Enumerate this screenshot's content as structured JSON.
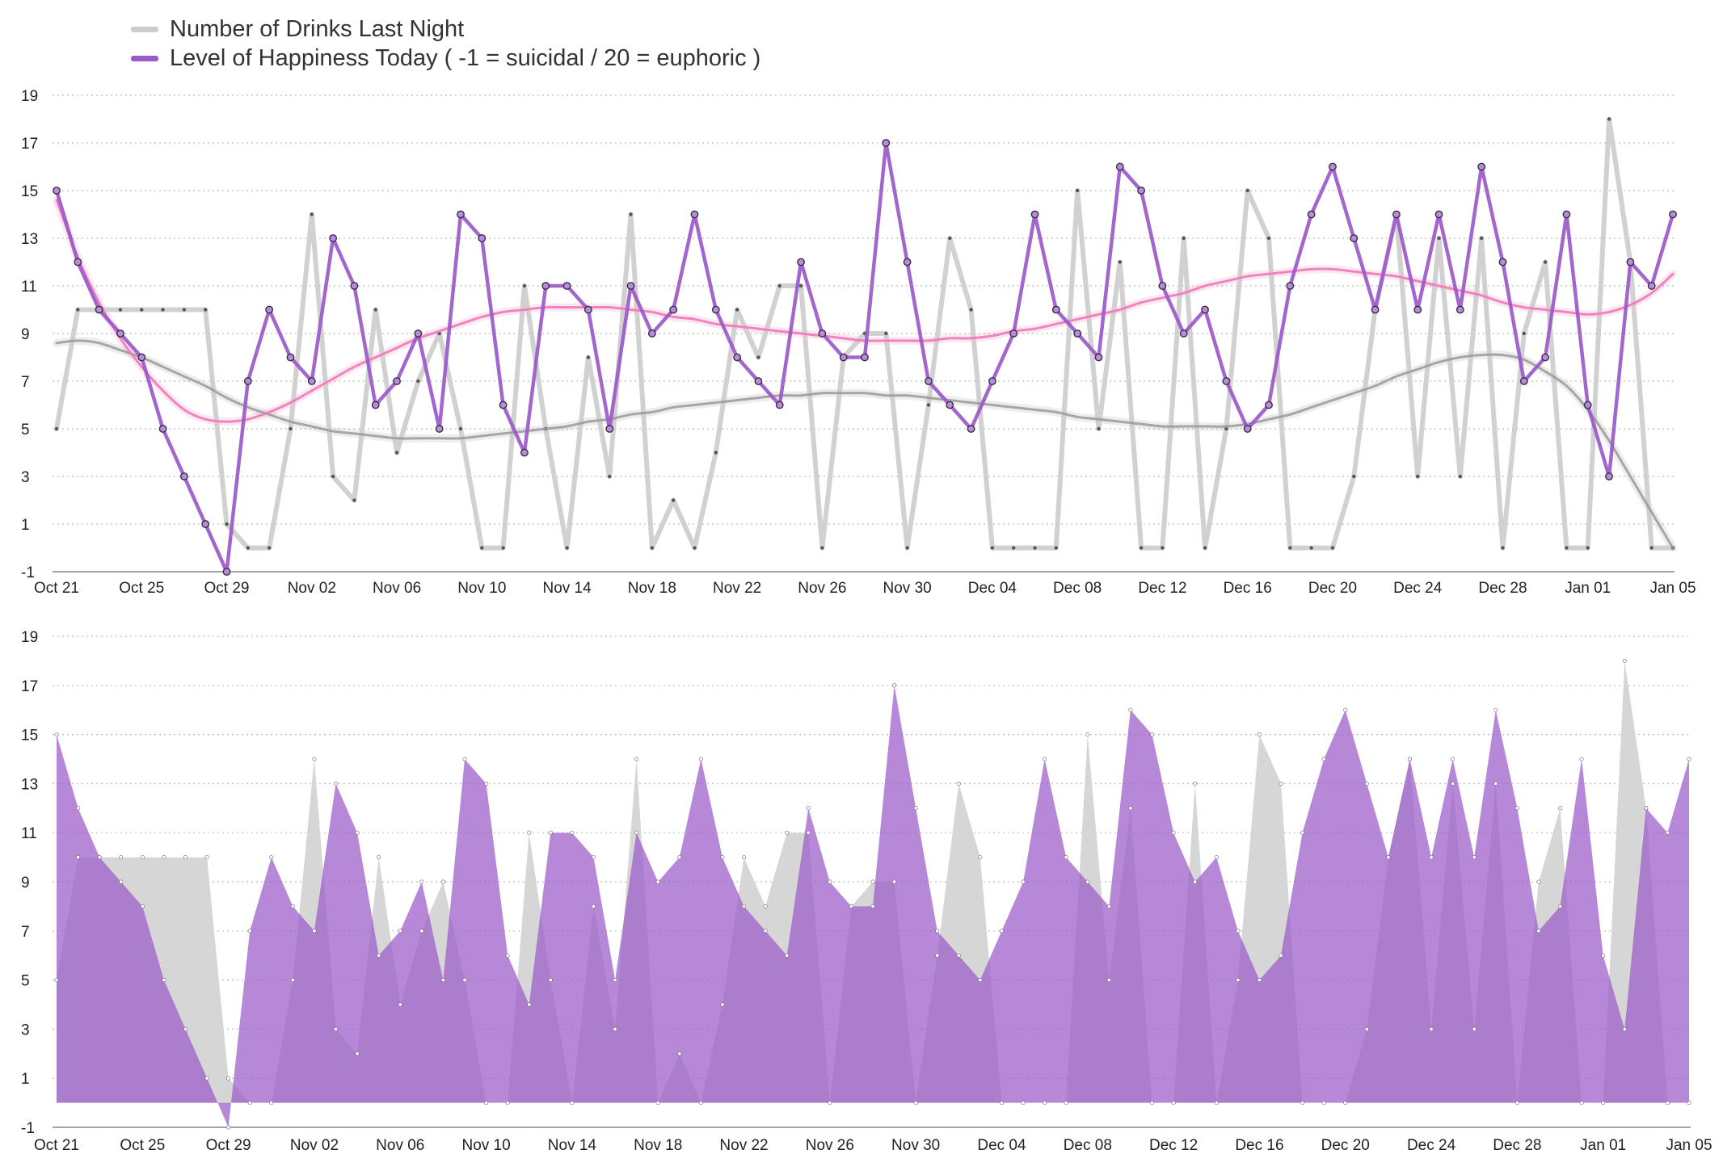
{
  "chart_data": [
    {
      "type": "line",
      "title": "",
      "legend": {
        "placement": "top-left",
        "entries": [
          {
            "key": "drinks",
            "label": "Number of Drinks Last Night",
            "color": "#cccccc"
          },
          {
            "key": "happiness",
            "label": "Level of Happiness Today ( -1 = suicidal  /  20 = euphoric )",
            "color": "#9b59c9"
          }
        ]
      },
      "xlabel": "",
      "ylabel": "",
      "ylim": [
        -1,
        20
      ],
      "x_range_days": [
        0,
        76
      ],
      "y_ticks": [
        -1,
        1,
        3,
        5,
        7,
        9,
        11,
        13,
        15,
        17,
        19
      ],
      "x_ticks": [
        {
          "day": 0,
          "label": "Oct 21"
        },
        {
          "day": 4,
          "label": "Oct 25"
        },
        {
          "day": 8,
          "label": "Oct 29"
        },
        {
          "day": 12,
          "label": "Nov 02"
        },
        {
          "day": 16,
          "label": "Nov 06"
        },
        {
          "day": 20,
          "label": "Nov 10"
        },
        {
          "day": 24,
          "label": "Nov 14"
        },
        {
          "day": 28,
          "label": "Nov 18"
        },
        {
          "day": 32,
          "label": "Nov 22"
        },
        {
          "day": 36,
          "label": "Nov 26"
        },
        {
          "day": 40,
          "label": "Nov 30"
        },
        {
          "day": 44,
          "label": "Dec 04"
        },
        {
          "day": 48,
          "label": "Dec 08"
        },
        {
          "day": 52,
          "label": "Dec 12"
        },
        {
          "day": 56,
          "label": "Dec 16"
        },
        {
          "day": 60,
          "label": "Dec 20"
        },
        {
          "day": 64,
          "label": "Dec 24"
        },
        {
          "day": 68,
          "label": "Dec 28"
        },
        {
          "day": 72,
          "label": "Jan 01"
        },
        {
          "day": 76,
          "label": "Jan 05"
        }
      ],
      "series": [
        {
          "name": "drinks",
          "style": "line",
          "color": "#cccccc",
          "values": [
            5,
            10,
            10,
            10,
            10,
            10,
            10,
            10,
            1,
            0,
            0,
            5,
            14,
            3,
            2,
            10,
            4,
            7,
            9,
            5,
            0,
            0,
            11,
            5,
            0,
            8,
            3,
            14,
            0,
            2,
            0,
            4,
            10,
            8,
            11,
            11,
            0,
            8,
            9,
            9,
            0,
            6,
            13,
            10,
            0,
            0,
            0,
            0,
            15,
            5,
            12,
            0,
            0,
            13,
            0,
            5,
            15,
            13,
            0,
            0,
            0,
            3,
            10,
            14,
            3,
            13,
            3,
            13,
            0,
            9,
            12,
            0,
            0,
            18,
            12,
            0,
            0
          ]
        },
        {
          "name": "happiness",
          "style": "line",
          "color": "#9b59c9",
          "values": [
            15,
            12,
            10,
            9,
            8,
            5,
            3,
            1,
            -1,
            7,
            10,
            8,
            7,
            13,
            11,
            6,
            7,
            9,
            5,
            14,
            13,
            6,
            4,
            11,
            11,
            10,
            5,
            11,
            9,
            10,
            14,
            10,
            8,
            7,
            6,
            12,
            9,
            8,
            8,
            17,
            12,
            7,
            6,
            5,
            7,
            9,
            14,
            10,
            9,
            8,
            16,
            15,
            11,
            9,
            10,
            7,
            5,
            6,
            11,
            14,
            16,
            13,
            10,
            14,
            10,
            14,
            10,
            16,
            12,
            7,
            8,
            14,
            6,
            3,
            12,
            11,
            14
          ]
        },
        {
          "name": "drinks-trend",
          "style": "smooth",
          "color": "#999999",
          "values": [
            8.6,
            8.7,
            8.6,
            8.3,
            8.0,
            7.6,
            7.2,
            6.8,
            6.3,
            5.9,
            5.6,
            5.3,
            5.1,
            4.9,
            4.8,
            4.7,
            4.6,
            4.6,
            4.6,
            4.6,
            4.7,
            4.8,
            4.9,
            5.0,
            5.1,
            5.3,
            5.4,
            5.6,
            5.7,
            5.9,
            6.0,
            6.1,
            6.2,
            6.3,
            6.4,
            6.4,
            6.5,
            6.5,
            6.5,
            6.4,
            6.4,
            6.3,
            6.2,
            6.1,
            6.0,
            5.9,
            5.8,
            5.7,
            5.5,
            5.4,
            5.3,
            5.2,
            5.1,
            5.1,
            5.1,
            5.1,
            5.2,
            5.4,
            5.6,
            5.9,
            6.2,
            6.5,
            6.8,
            7.2,
            7.5,
            7.8,
            8.0,
            8.1,
            8.1,
            7.9,
            7.4,
            6.8,
            5.8,
            4.5,
            3.0,
            1.5,
            0
          ]
        },
        {
          "name": "happiness-trend",
          "style": "smooth",
          "color": "#f07dbb",
          "values": [
            14.6,
            12.2,
            10.3,
            8.8,
            7.6,
            6.6,
            5.8,
            5.4,
            5.3,
            5.4,
            5.7,
            6.1,
            6.6,
            7.1,
            7.6,
            8.0,
            8.4,
            8.8,
            9.1,
            9.4,
            9.7,
            9.9,
            10.0,
            10.1,
            10.1,
            10.1,
            10.1,
            10.0,
            9.9,
            9.7,
            9.6,
            9.4,
            9.3,
            9.2,
            9.1,
            9.0,
            8.9,
            8.8,
            8.7,
            8.7,
            8.7,
            8.7,
            8.8,
            8.8,
            8.9,
            9.1,
            9.2,
            9.4,
            9.6,
            9.8,
            10.0,
            10.3,
            10.5,
            10.7,
            11.0,
            11.2,
            11.4,
            11.5,
            11.6,
            11.7,
            11.7,
            11.6,
            11.5,
            11.4,
            11.2,
            11.0,
            10.8,
            10.6,
            10.3,
            10.1,
            10.0,
            9.9,
            9.8,
            9.9,
            10.2,
            10.7,
            11.5
          ]
        }
      ]
    },
    {
      "type": "area",
      "title": "",
      "xlabel": "",
      "ylabel": "",
      "ylim": [
        -1,
        20
      ],
      "baseline": 0,
      "x_range_days": [
        0,
        76
      ],
      "y_ticks": [
        -1,
        1,
        3,
        5,
        7,
        9,
        11,
        13,
        15,
        17,
        19
      ],
      "x_ticks": [
        {
          "day": 0,
          "label": "Oct 21"
        },
        {
          "day": 4,
          "label": "Oct 25"
        },
        {
          "day": 8,
          "label": "Oct 29"
        },
        {
          "day": 12,
          "label": "Nov 02"
        },
        {
          "day": 16,
          "label": "Nov 06"
        },
        {
          "day": 20,
          "label": "Nov 10"
        },
        {
          "day": 24,
          "label": "Nov 14"
        },
        {
          "day": 28,
          "label": "Nov 18"
        },
        {
          "day": 32,
          "label": "Nov 22"
        },
        {
          "day": 36,
          "label": "Nov 26"
        },
        {
          "day": 40,
          "label": "Nov 30"
        },
        {
          "day": 44,
          "label": "Dec 04"
        },
        {
          "day": 48,
          "label": "Dec 08"
        },
        {
          "day": 52,
          "label": "Dec 12"
        },
        {
          "day": 56,
          "label": "Dec 16"
        },
        {
          "day": 60,
          "label": "Dec 20"
        },
        {
          "day": 64,
          "label": "Dec 24"
        },
        {
          "day": 68,
          "label": "Dec 28"
        },
        {
          "day": 72,
          "label": "Jan 01"
        },
        {
          "day": 76,
          "label": "Jan 05"
        }
      ],
      "series": [
        {
          "name": "drinks",
          "color": "#d6d6d6",
          "values": [
            5,
            10,
            10,
            10,
            10,
            10,
            10,
            10,
            1,
            0,
            0,
            5,
            14,
            3,
            2,
            10,
            4,
            7,
            9,
            5,
            0,
            0,
            11,
            5,
            0,
            8,
            3,
            14,
            0,
            2,
            0,
            4,
            10,
            8,
            11,
            11,
            0,
            8,
            9,
            9,
            0,
            6,
            13,
            10,
            0,
            0,
            0,
            0,
            15,
            5,
            12,
            0,
            0,
            13,
            0,
            5,
            15,
            13,
            0,
            0,
            0,
            3,
            10,
            14,
            3,
            13,
            3,
            13,
            0,
            9,
            12,
            0,
            0,
            18,
            12,
            0,
            0
          ]
        },
        {
          "name": "happiness",
          "color": "#9b59c9",
          "values": [
            15,
            12,
            10,
            9,
            8,
            5,
            3,
            1,
            -1,
            7,
            10,
            8,
            7,
            13,
            11,
            6,
            7,
            9,
            5,
            14,
            13,
            6,
            4,
            11,
            11,
            10,
            5,
            11,
            9,
            10,
            14,
            10,
            8,
            7,
            6,
            12,
            9,
            8,
            8,
            17,
            12,
            7,
            6,
            5,
            7,
            9,
            14,
            10,
            9,
            8,
            16,
            15,
            11,
            9,
            10,
            7,
            5,
            6,
            11,
            14,
            16,
            13,
            10,
            14,
            10,
            14,
            10,
            16,
            12,
            7,
            8,
            14,
            6,
            3,
            12,
            11,
            14
          ]
        }
      ]
    }
  ]
}
